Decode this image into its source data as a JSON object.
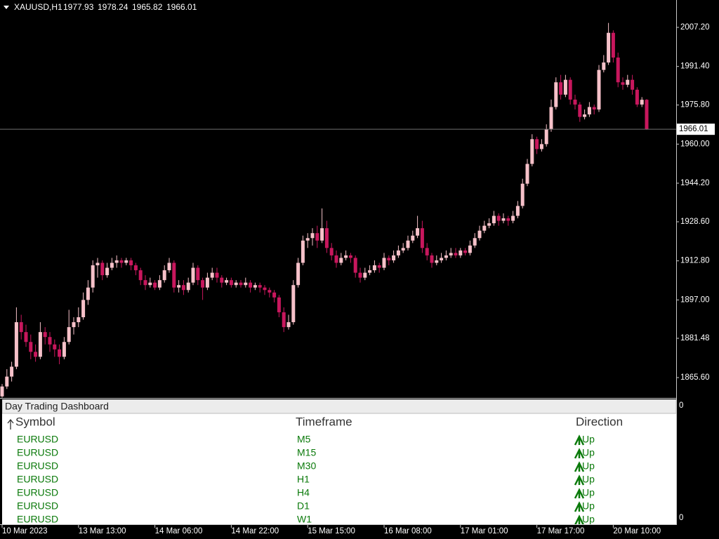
{
  "chart_data": {
    "type": "candlestick",
    "symbol": "XAUUSD,H1",
    "up_color": "#f6c1c9",
    "down_color": "#c8175d",
    "ylim": [
      1857.37,
      2018.27
    ],
    "yticks": [
      {
        "value": 1865.6,
        "label": "1865.60"
      },
      1881.48,
      {
        "value": 1897,
        "label": "1897.00"
      },
      {
        "value": 1912.8,
        "label": "1912.80"
      },
      {
        "value": 1928.6,
        "label": "1928.60"
      },
      {
        "value": 1944.2,
        "label": "1944.20"
      },
      {
        "value": 1960,
        "label": "1960.00"
      },
      {
        "value": 1975.8,
        "label": "1975.80"
      },
      {
        "value": 1991.4,
        "label": "1991.40"
      },
      {
        "value": 2007.2,
        "label": "2007.20"
      }
    ],
    "categories": [
      "10 Mar 2023",
      null,
      null,
      null,
      null,
      null,
      null,
      null,
      null,
      null,
      null,
      null,
      null,
      null,
      null,
      null,
      "13 Mar 13:00",
      null,
      null,
      null,
      null,
      null,
      null,
      null,
      null,
      null,
      null,
      null,
      null,
      null,
      null,
      null,
      "14 Mar 06:00",
      null,
      null,
      null,
      null,
      null,
      null,
      null,
      null,
      null,
      null,
      null,
      null,
      null,
      null,
      null,
      "14 Mar 22:00",
      null,
      null,
      null,
      null,
      null,
      null,
      null,
      null,
      null,
      null,
      null,
      null,
      null,
      null,
      null,
      "15 Mar 15:00",
      null,
      null,
      null,
      null,
      null,
      null,
      null,
      null,
      null,
      null,
      null,
      null,
      null,
      null,
      null,
      "16 Mar 08:00",
      null,
      null,
      null,
      null,
      null,
      null,
      null,
      null,
      null,
      null,
      null,
      null,
      null,
      null,
      null,
      "17 Mar 01:00",
      null,
      null,
      null,
      null,
      null,
      null,
      null,
      null,
      null,
      null,
      null,
      null,
      null,
      null,
      null,
      "17 Mar 17:00",
      null,
      null,
      null,
      null,
      null,
      null,
      null,
      null,
      null,
      null,
      null,
      null,
      null,
      null,
      null,
      "20 Mar 10:00",
      null,
      null,
      null,
      null,
      null,
      null,
      null
    ],
    "candles": [
      [
        1858,
        1863,
        1857.5,
        1862
      ],
      [
        1862,
        1869,
        1861,
        1866
      ],
      [
        1866,
        1872,
        1864,
        1870
      ],
      [
        1870,
        1894,
        1869,
        1888
      ],
      [
        1888,
        1891,
        1881,
        1884
      ],
      [
        1884,
        1887,
        1878,
        1880
      ],
      [
        1880,
        1883,
        1873,
        1876
      ],
      [
        1876,
        1879,
        1872,
        1874
      ],
      [
        1874,
        1888,
        1873,
        1884
      ],
      [
        1884,
        1886,
        1879,
        1882
      ],
      [
        1882,
        1884,
        1876,
        1879
      ],
      [
        1879,
        1881,
        1874,
        1877
      ],
      [
        1877,
        1879,
        1871,
        1874
      ],
      [
        1874,
        1882,
        1873,
        1880
      ],
      [
        1880,
        1893,
        1879,
        1886
      ],
      [
        1886,
        1890,
        1883,
        1888
      ],
      [
        1888,
        1894,
        1886,
        1890
      ],
      [
        1890,
        1900,
        1889,
        1897
      ],
      [
        1897,
        1905,
        1895,
        1902
      ],
      [
        1902,
        1913,
        1900,
        1911
      ],
      [
        1911,
        1914,
        1906,
        1912
      ],
      [
        1912,
        1913,
        1905,
        1907
      ],
      [
        1907,
        1912,
        1906,
        1910
      ],
      [
        1910,
        1914,
        1909,
        1912
      ],
      [
        1912,
        1915,
        1910,
        1913
      ],
      [
        1913,
        1914,
        1910,
        1912
      ],
      [
        1912,
        1914,
        1911,
        1913
      ],
      [
        1913,
        1914,
        1909,
        1911
      ],
      [
        1911,
        1912,
        1907,
        1909
      ],
      [
        1909,
        1910,
        1903,
        1905
      ],
      [
        1905,
        1907,
        1901,
        1903
      ],
      [
        1903,
        1906,
        1902,
        1904
      ],
      [
        1904,
        1905,
        1901,
        1902
      ],
      [
        1902,
        1907,
        1901,
        1905
      ],
      [
        1905,
        1911,
        1904,
        1909
      ],
      [
        1909,
        1914,
        1908,
        1912
      ],
      [
        1912,
        1913,
        1900,
        1902
      ],
      [
        1902,
        1905,
        1900,
        1903
      ],
      [
        1903,
        1905,
        1899,
        1901
      ],
      [
        1901,
        1906,
        1900,
        1904
      ],
      [
        1904,
        1912,
        1903,
        1910
      ],
      [
        1910,
        1911,
        1903,
        1905
      ],
      [
        1905,
        1906,
        1897,
        1902
      ],
      [
        1902,
        1908,
        1901,
        1906
      ],
      [
        1906,
        1910,
        1905,
        1908
      ],
      [
        1908,
        1910,
        1904,
        1906
      ],
      [
        1906,
        1907,
        1902,
        1904
      ],
      [
        1904,
        1906,
        1903,
        1905
      ],
      [
        1905,
        1906,
        1902,
        1903
      ],
      [
        1903,
        1905,
        1902,
        1904
      ],
      [
        1904,
        1905,
        1902,
        1903
      ],
      [
        1903,
        1906,
        1902,
        1904
      ],
      [
        1904,
        1905,
        1900,
        1902
      ],
      [
        1902,
        1904,
        1901,
        1903
      ],
      [
        1903,
        1904,
        1900,
        1902
      ],
      [
        1902,
        1903,
        1899,
        1901
      ],
      [
        1901,
        1902,
        1898,
        1900
      ],
      [
        1900,
        1901,
        1896,
        1898
      ],
      [
        1898,
        1899,
        1890,
        1892
      ],
      [
        1892,
        1894,
        1884,
        1886
      ],
      [
        1886,
        1891,
        1885,
        1888
      ],
      [
        1888,
        1905,
        1887,
        1903
      ],
      [
        1903,
        1914,
        1902,
        1912
      ],
      [
        1912,
        1923,
        1911,
        1921
      ],
      [
        1921,
        1924,
        1918,
        1922
      ],
      [
        1922,
        1926,
        1919,
        1924
      ],
      [
        1924,
        1927,
        1918,
        1921
      ],
      [
        1921,
        1934,
        1920,
        1926
      ],
      [
        1926,
        1929,
        1916,
        1918
      ],
      [
        1918,
        1920,
        1913,
        1915
      ],
      [
        1915,
        1917,
        1910,
        1912
      ],
      [
        1912,
        1916,
        1911,
        1914
      ],
      [
        1914,
        1917,
        1913,
        1915
      ],
      [
        1915,
        1916,
        1912,
        1914
      ],
      [
        1914,
        1915,
        1906,
        1908
      ],
      [
        1908,
        1910,
        1904,
        1906
      ],
      [
        1906,
        1910,
        1905,
        1908
      ],
      [
        1908,
        1911,
        1907,
        1909
      ],
      [
        1909,
        1913,
        1908,
        1911
      ],
      [
        1911,
        1912,
        1908,
        1910
      ],
      [
        1910,
        1916,
        1909,
        1914
      ],
      [
        1914,
        1915,
        1911,
        1913
      ],
      [
        1913,
        1917,
        1912,
        1915
      ],
      [
        1915,
        1919,
        1914,
        1917
      ],
      [
        1917,
        1920,
        1916,
        1918
      ],
      [
        1918,
        1923,
        1917,
        1921
      ],
      [
        1921,
        1925,
        1920,
        1923
      ],
      [
        1923,
        1931,
        1922,
        1926
      ],
      [
        1926,
        1929,
        1916,
        1918
      ],
      [
        1918,
        1920,
        1913,
        1915
      ],
      [
        1915,
        1916,
        1910,
        1912
      ],
      [
        1912,
        1915,
        1911,
        1913
      ],
      [
        1913,
        1916,
        1912,
        1914
      ],
      [
        1914,
        1917,
        1913,
        1915
      ],
      [
        1915,
        1918,
        1914,
        1916
      ],
      [
        1916,
        1918,
        1914,
        1915
      ],
      [
        1915,
        1918,
        1914,
        1917
      ],
      [
        1917,
        1918,
        1915,
        1916
      ],
      [
        1916,
        1921,
        1915,
        1919
      ],
      [
        1919,
        1924,
        1918,
        1922
      ],
      [
        1922,
        1927,
        1921,
        1925
      ],
      [
        1925,
        1929,
        1924,
        1927
      ],
      [
        1927,
        1930,
        1926,
        1928
      ],
      [
        1928,
        1933,
        1927,
        1931
      ],
      [
        1931,
        1932,
        1927,
        1929
      ],
      [
        1929,
        1932,
        1928,
        1930
      ],
      [
        1930,
        1931,
        1927,
        1929
      ],
      [
        1929,
        1933,
        1928,
        1931
      ],
      [
        1931,
        1937,
        1930,
        1935
      ],
      [
        1935,
        1946,
        1934,
        1944
      ],
      [
        1944,
        1954,
        1943,
        1952
      ],
      [
        1952,
        1964,
        1951,
        1962
      ],
      [
        1962,
        1963,
        1956,
        1958
      ],
      [
        1958,
        1962,
        1957,
        1960
      ],
      [
        1960,
        1968,
        1959,
        1966
      ],
      [
        1966,
        1978,
        1965,
        1975
      ],
      [
        1975,
        1987,
        1974,
        1985
      ],
      [
        1985,
        1988,
        1978,
        1980
      ],
      [
        1980,
        1988,
        1979,
        1986
      ],
      [
        1986,
        1987,
        1976,
        1978
      ],
      [
        1978,
        1980,
        1974,
        1976
      ],
      [
        1976,
        1977,
        1969,
        1971
      ],
      [
        1971,
        1974,
        1970,
        1972
      ],
      [
        1972,
        1977,
        1971,
        1975
      ],
      [
        1975,
        1976,
        1972,
        1974
      ],
      [
        1974,
        1992,
        1973,
        1990
      ],
      [
        1990,
        1996,
        1989,
        1993
      ],
      [
        1993,
        2009,
        1992,
        2005
      ],
      [
        2005,
        2006,
        1993,
        1995
      ],
      [
        1995,
        1997,
        1983,
        1985
      ],
      [
        1985,
        1987,
        1982,
        1984
      ],
      [
        1984,
        1988,
        1983,
        1986
      ],
      [
        1986,
        1988,
        1980,
        1982
      ],
      [
        1982,
        1983,
        1975,
        1976
      ],
      [
        1976,
        1979,
        1975,
        1977.93
      ],
      [
        1977.93,
        1978.24,
        1965.82,
        1966.01
      ]
    ],
    "indicator_yticks": [
      0,
      0
    ]
  },
  "dashboard": {
    "title": "Day Trading Dashboard",
    "columns": [
      "Symbol",
      "Timeframe",
      "Direction"
    ],
    "rows": [
      [
        "EURUSD",
        "M5",
        "Up"
      ],
      [
        "EURUSD",
        "M15",
        "Up"
      ],
      [
        "EURUSD",
        "M30",
        "Up"
      ],
      [
        "EURUSD",
        "H1",
        "Up"
      ],
      [
        "EURUSD",
        "H4",
        "Up"
      ],
      [
        "EURUSD",
        "D1",
        "Up"
      ],
      [
        "EURUSD",
        "W1",
        "Up"
      ]
    ]
  }
}
